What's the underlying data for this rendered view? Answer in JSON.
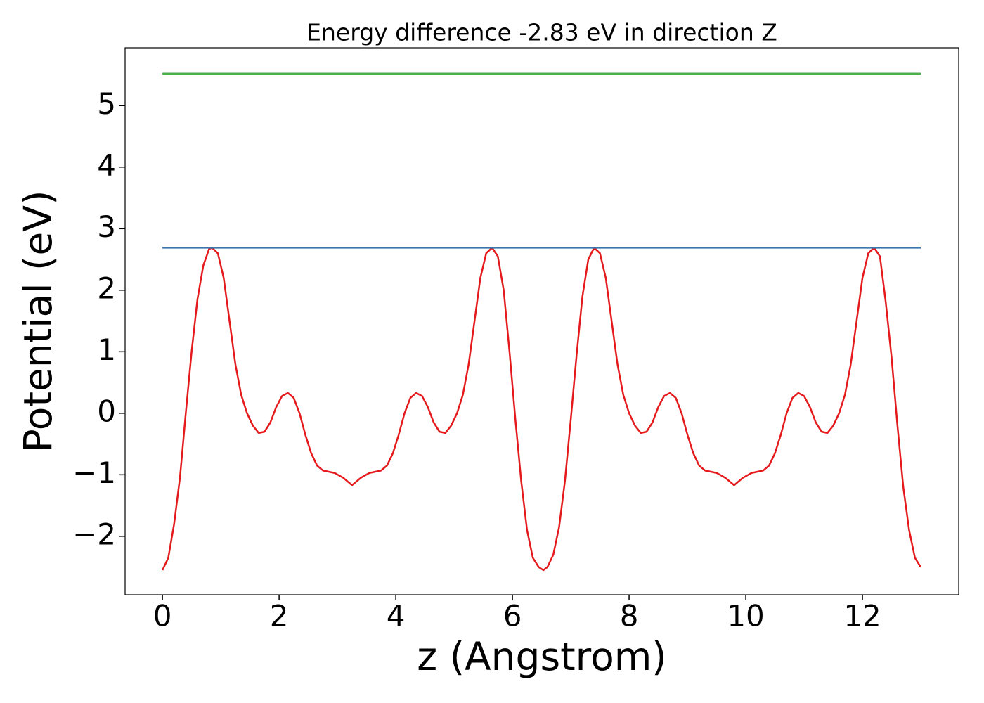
{
  "chart_data": {
    "type": "line",
    "title": "Energy difference -2.83 eV in direction Z",
    "xlabel": "z (Angstrom)",
    "ylabel": "Potential (eV)",
    "xlim": [
      -0.64,
      13.65
    ],
    "ylim": [
      -2.95,
      5.94
    ],
    "xticks": [
      0,
      2,
      4,
      6,
      8,
      10,
      12
    ],
    "yticks": [
      {
        "value": -2,
        "label": "−2"
      },
      {
        "value": -1,
        "label": "−1"
      },
      0,
      1,
      2,
      3,
      4,
      5
    ],
    "grid": false,
    "series": [
      {
        "color": "#e41a1c",
        "x": [
          0,
          0.1,
          0.2,
          0.3,
          0.4,
          0.5,
          0.6,
          0.7,
          0.8,
          0.85,
          0.95,
          1.05,
          1.15,
          1.25,
          1.35,
          1.45,
          1.55,
          1.65,
          1.75,
          1.85,
          1.95,
          2.05,
          2.15,
          2.25,
          2.35,
          2.45,
          2.55,
          2.65,
          2.75,
          2.95,
          3.1,
          3.25,
          3.4,
          3.55,
          3.75,
          3.85,
          3.95,
          4.05,
          4.15,
          4.25,
          4.35,
          4.45,
          4.55,
          4.65,
          4.75,
          4.85,
          4.95,
          5.05,
          5.15,
          5.25,
          5.35,
          5.45,
          5.55,
          5.65,
          5.75,
          5.85,
          5.95,
          6.05,
          6.15,
          6.25,
          6.35,
          6.45,
          6.53,
          6.6,
          6.7,
          6.8,
          6.9,
          7.0,
          7.1,
          7.2,
          7.3,
          7.4,
          7.5,
          7.6,
          7.7,
          7.8,
          7.9,
          8.0,
          8.1,
          8.2,
          8.3,
          8.4,
          8.5,
          8.6,
          8.7,
          8.8,
          8.9,
          9.0,
          9.1,
          9.2,
          9.3,
          9.5,
          9.65,
          9.8,
          9.95,
          10.1,
          10.3,
          10.4,
          10.5,
          10.6,
          10.7,
          10.8,
          10.9,
          11.0,
          11.1,
          11.2,
          11.3,
          11.4,
          11.5,
          11.6,
          11.7,
          11.8,
          11.9,
          12.0,
          12.1,
          12.2,
          12.3,
          12.4,
          12.5,
          12.6,
          12.7,
          12.8,
          12.9,
          13.0
        ],
        "values": [
          -2.55,
          -2.35,
          -1.8,
          -1.05,
          0,
          1.0,
          1.85,
          2.4,
          2.67,
          2.69,
          2.6,
          2.2,
          1.5,
          0.8,
          0.3,
          0.0,
          -0.2,
          -0.32,
          -0.3,
          -0.15,
          0.1,
          0.28,
          0.33,
          0.25,
          0.0,
          -0.35,
          -0.65,
          -0.85,
          -0.93,
          -0.97,
          -1.05,
          -1.17,
          -1.05,
          -0.97,
          -0.93,
          -0.85,
          -0.65,
          -0.35,
          0.0,
          0.25,
          0.33,
          0.28,
          0.1,
          -0.15,
          -0.3,
          -0.32,
          -0.2,
          0.0,
          0.3,
          0.8,
          1.5,
          2.2,
          2.6,
          2.69,
          2.55,
          2.0,
          1.0,
          -0.1,
          -1.1,
          -1.9,
          -2.35,
          -2.5,
          -2.55,
          -2.5,
          -2.3,
          -1.85,
          -1.1,
          -0.1,
          0.95,
          1.9,
          2.5,
          2.69,
          2.6,
          2.2,
          1.5,
          0.8,
          0.3,
          0.0,
          -0.2,
          -0.32,
          -0.3,
          -0.15,
          0.1,
          0.28,
          0.33,
          0.25,
          0.0,
          -0.35,
          -0.65,
          -0.85,
          -0.93,
          -0.97,
          -1.05,
          -1.17,
          -1.05,
          -0.97,
          -0.93,
          -0.85,
          -0.65,
          -0.35,
          0.0,
          0.25,
          0.33,
          0.28,
          0.1,
          -0.15,
          -0.3,
          -0.32,
          -0.2,
          0.0,
          0.3,
          0.8,
          1.5,
          2.2,
          2.6,
          2.69,
          2.55,
          1.8,
          0.9,
          -0.2,
          -1.2,
          -1.9,
          -2.35,
          -2.5
        ]
      },
      {
        "color": "#3b75af",
        "x": [
          0,
          13
        ],
        "values": [
          2.69,
          2.69
        ]
      },
      {
        "color": "#4daf4a",
        "x": [
          0,
          13
        ],
        "values": [
          5.52,
          5.52
        ]
      }
    ]
  }
}
